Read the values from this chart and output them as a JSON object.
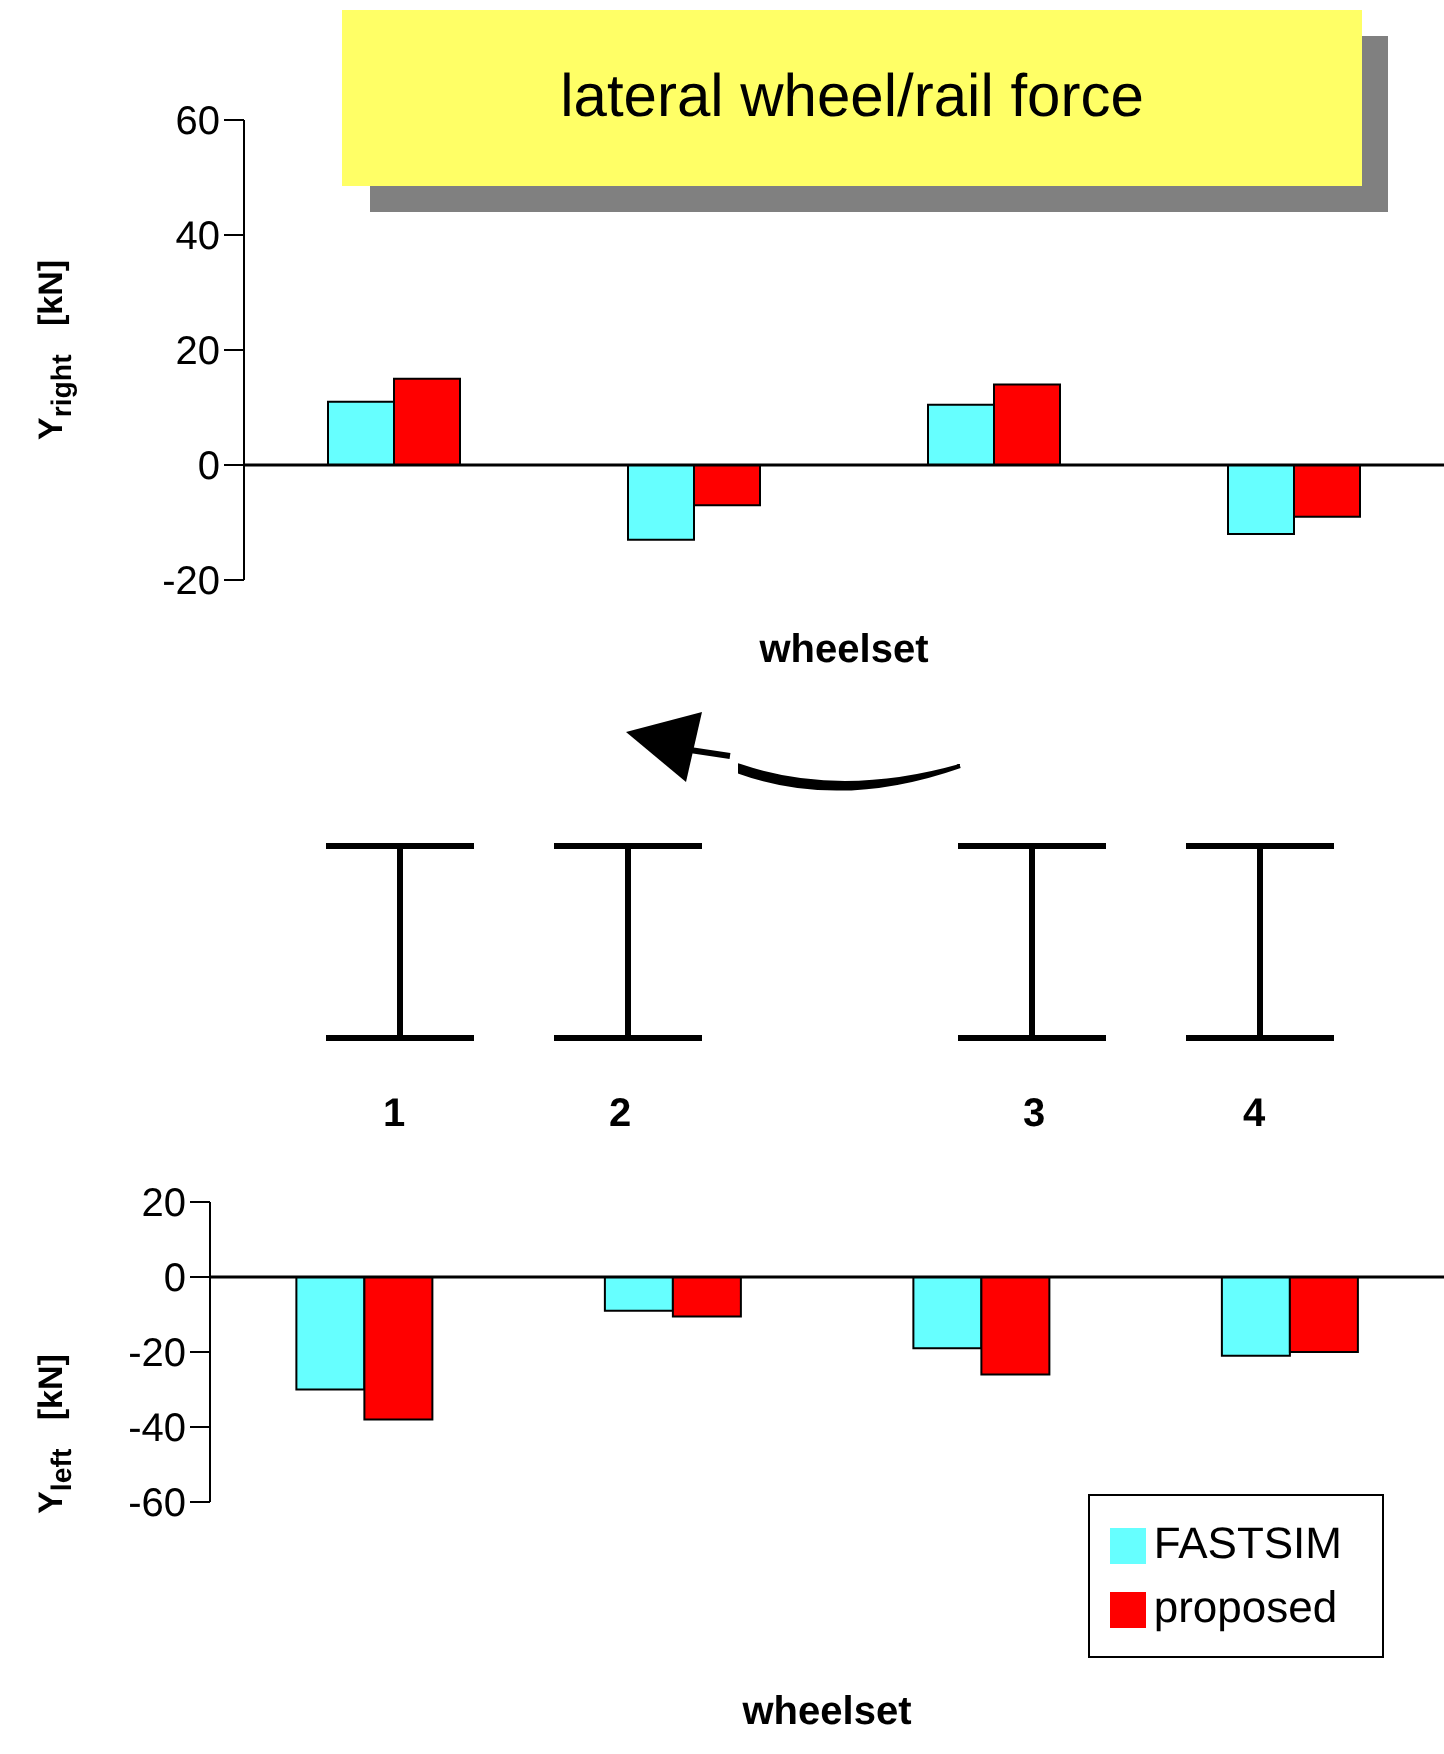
{
  "chart_data": [
    {
      "type": "bar",
      "title": "lateral wheel/rail force",
      "xlabel": "wheelset",
      "ylabel": "Y$_{right}$   [kN]",
      "categories": [
        null,
        null,
        null,
        null
      ],
      "series": [
        {
          "color": "#66ffff",
          "values": [
            11,
            -13,
            10.5,
            -12
          ]
        },
        {
          "color": "#ff0000",
          "values": [
            15,
            -7,
            14,
            -9
          ]
        }
      ],
      "ylim": [
        -20,
        60
      ],
      "yticks": [
        -20,
        0,
        20,
        40,
        60
      ],
      "tick_labels": "y",
      "grid": false,
      "legend": false,
      "ref_lines": [
        {
          "axis": "y",
          "value": 0,
          "color": "#000000"
        }
      ],
      "annotations": [
        "1",
        "2",
        "3",
        "4"
      ]
    },
    {
      "type": "bar",
      "xlabel": "wheelset",
      "ylabel": "Y$_{left}$   [kN]",
      "categories": [
        null,
        null,
        null,
        null
      ],
      "series": [
        {
          "name": "FASTSIM",
          "color": "#66ffff",
          "values": [
            -30,
            -9,
            -19,
            -21
          ]
        },
        {
          "name": "proposed",
          "color": "#ff0000",
          "values": [
            -38,
            -10.5,
            -26,
            -20
          ]
        }
      ],
      "ylim": [
        -60,
        20
      ],
      "yticks": [
        -60,
        -40,
        -20,
        0,
        20
      ],
      "tick_labels": "y",
      "grid": false,
      "legend": "bottom right",
      "ref_lines": [
        {
          "axis": "y",
          "value": 0,
          "color": "#000000"
        }
      ]
    }
  ]
}
